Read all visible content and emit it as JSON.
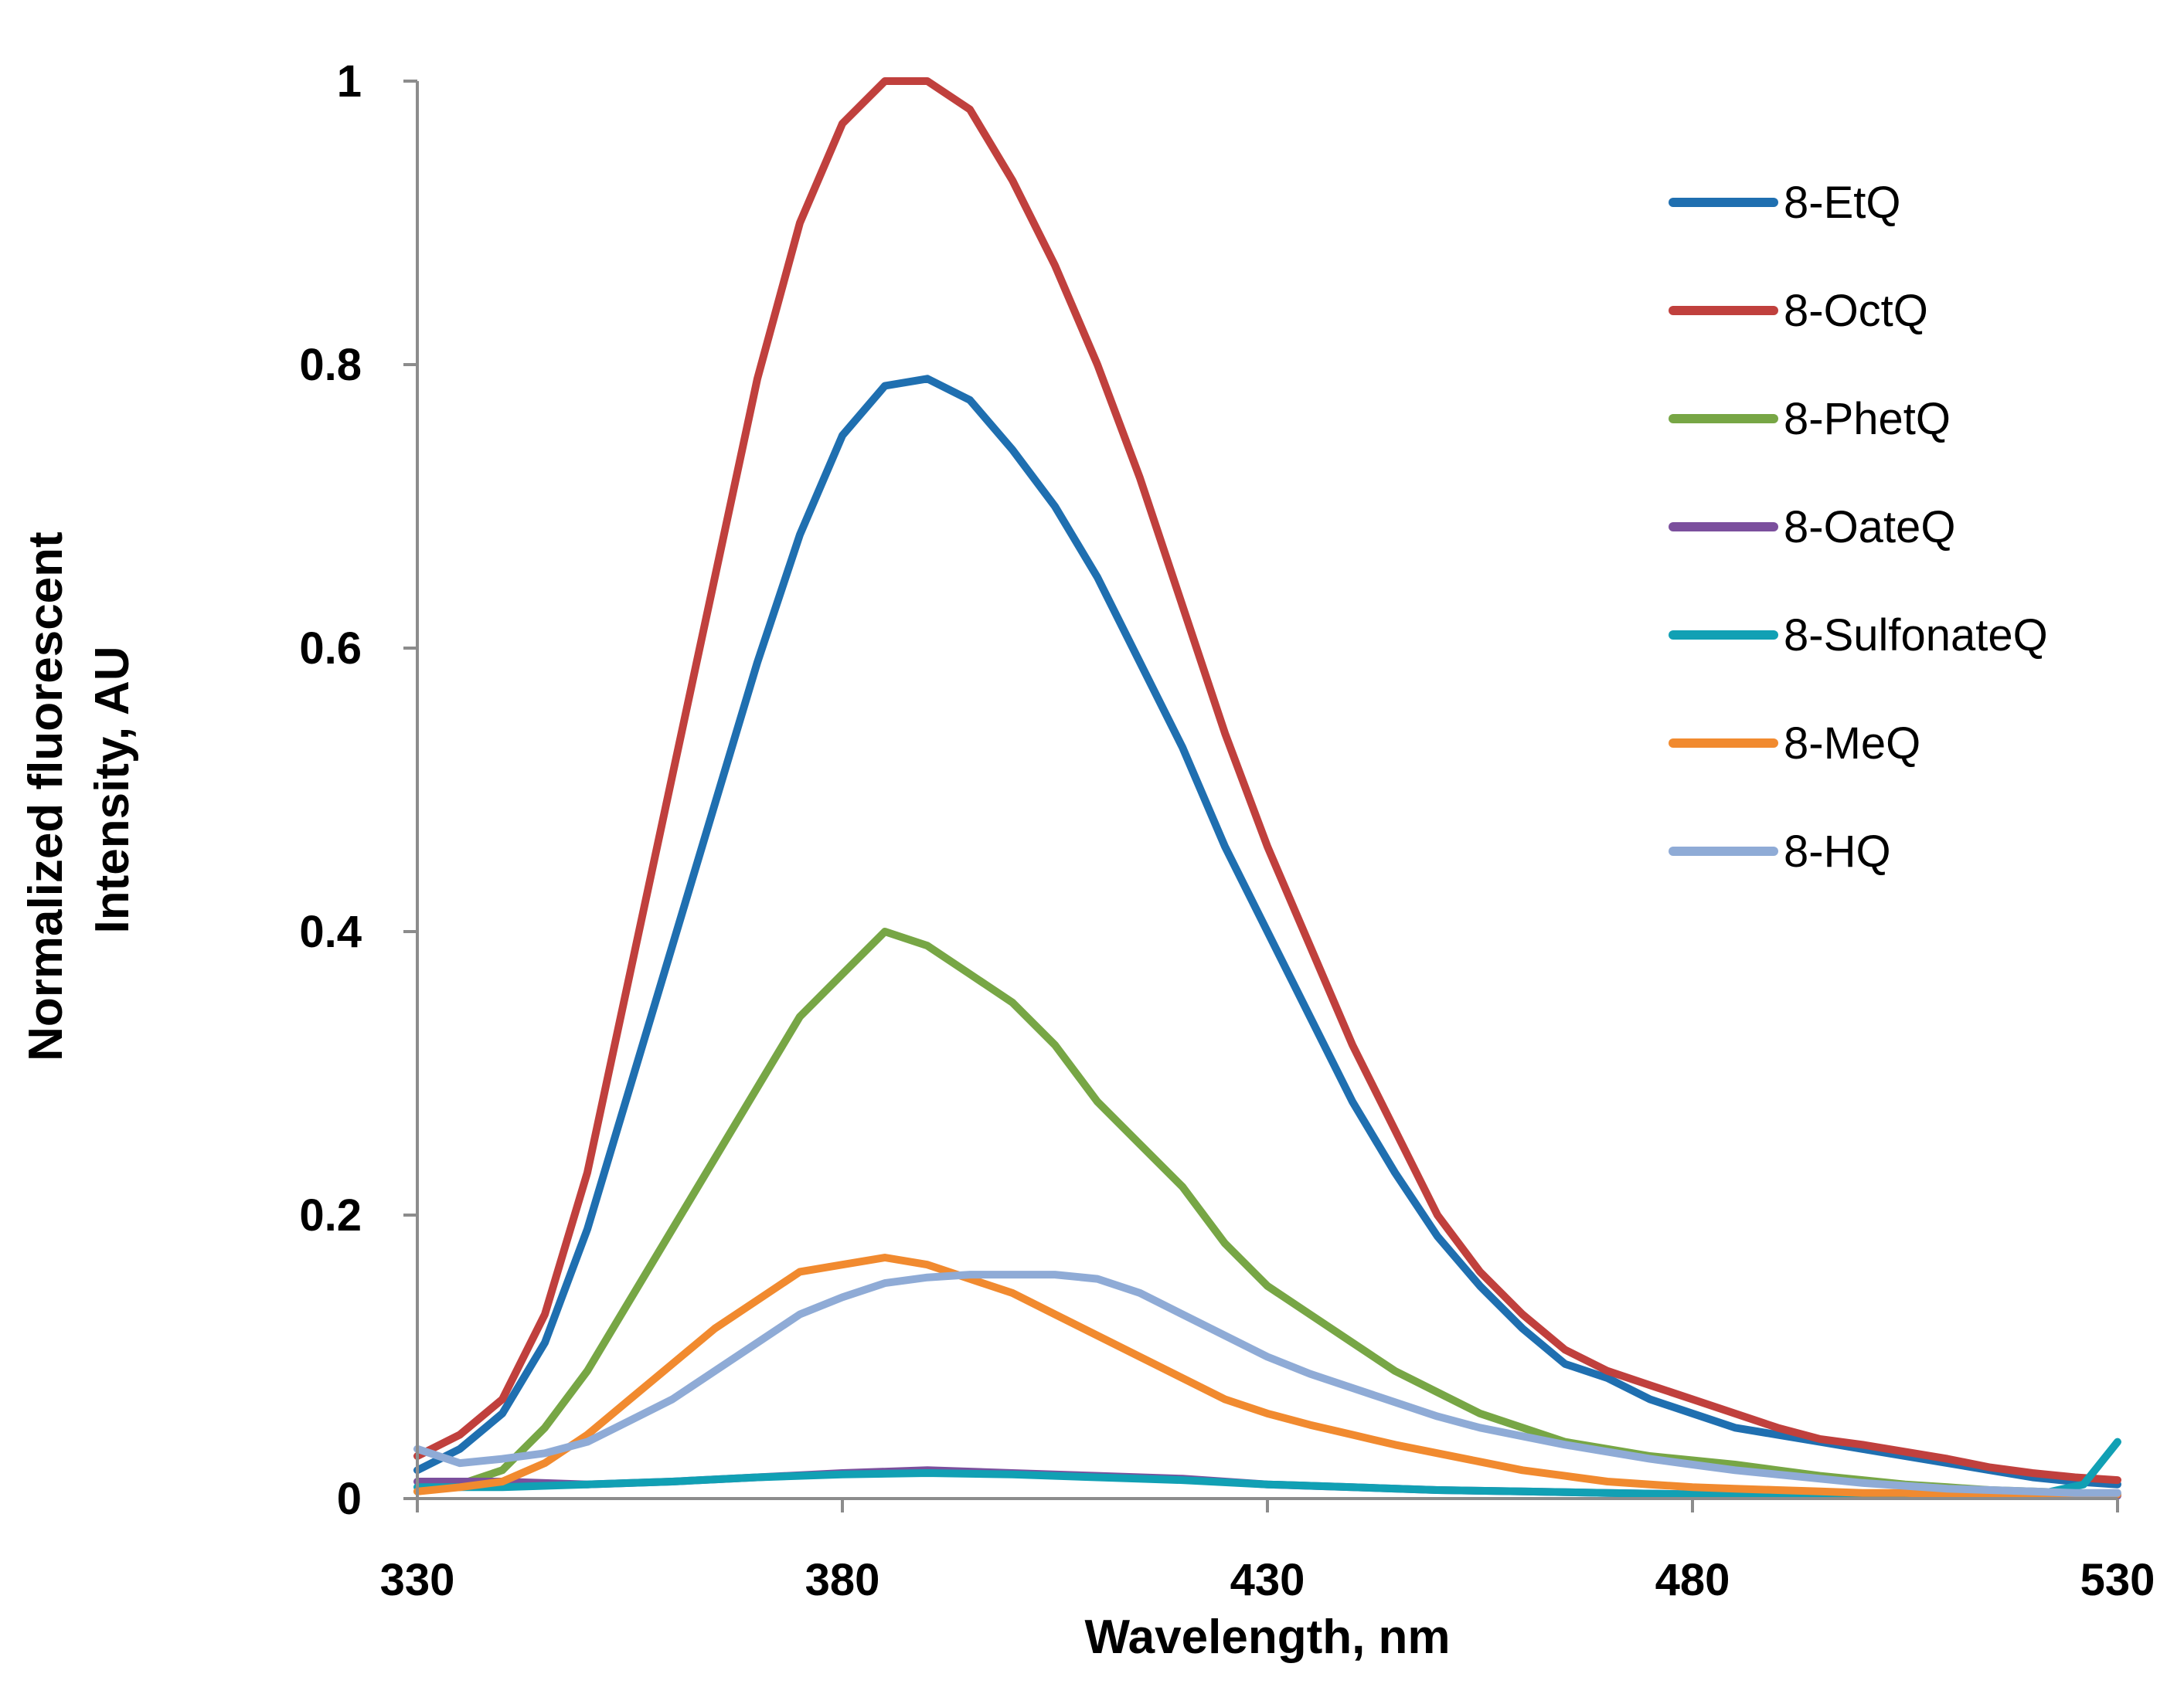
{
  "chart_data": {
    "type": "line",
    "title": "",
    "xlabel": "Wavelength, nm",
    "ylabel_lines": [
      "Normalized fluorescent",
      "Intensity, AU"
    ],
    "xlim": [
      330,
      530
    ],
    "ylim": [
      0,
      1
    ],
    "xticks": [
      330,
      380,
      430,
      480,
      530
    ],
    "xtick_labels": [
      "330",
      "380",
      "430",
      "480",
      "530"
    ],
    "yticks": [
      0,
      0.2,
      0.4,
      0.6,
      0.8,
      1
    ],
    "ytick_labels": [
      "0",
      "0.2",
      "0.4",
      "0.6",
      "0.8",
      "1"
    ],
    "grid": false,
    "legend_position": "top-right",
    "series": [
      {
        "name": "8-EtQ",
        "color": "#1f6fb0",
        "x": [
          330,
          335,
          340,
          345,
          350,
          355,
          360,
          365,
          370,
          375,
          380,
          385,
          390,
          395,
          400,
          405,
          410,
          415,
          420,
          425,
          430,
          435,
          440,
          445,
          450,
          455,
          460,
          465,
          470,
          475,
          480,
          485,
          490,
          495,
          500,
          505,
          510,
          515,
          520,
          525,
          530
        ],
        "values": [
          0.02,
          0.035,
          0.06,
          0.11,
          0.19,
          0.29,
          0.39,
          0.49,
          0.59,
          0.68,
          0.75,
          0.785,
          0.79,
          0.775,
          0.74,
          0.7,
          0.65,
          0.59,
          0.53,
          0.46,
          0.4,
          0.34,
          0.28,
          0.23,
          0.185,
          0.15,
          0.12,
          0.095,
          0.085,
          0.07,
          0.06,
          0.05,
          0.045,
          0.04,
          0.035,
          0.03,
          0.025,
          0.02,
          0.015,
          0.012,
          0.01
        ]
      },
      {
        "name": "8-OctQ",
        "color": "#c0403d",
        "x": [
          330,
          335,
          340,
          345,
          350,
          355,
          360,
          365,
          370,
          375,
          380,
          385,
          390,
          395,
          400,
          405,
          410,
          415,
          420,
          425,
          430,
          435,
          440,
          445,
          450,
          455,
          460,
          465,
          470,
          475,
          480,
          485,
          490,
          495,
          500,
          505,
          510,
          515,
          520,
          525,
          530
        ],
        "values": [
          0.03,
          0.045,
          0.07,
          0.13,
          0.23,
          0.37,
          0.51,
          0.65,
          0.79,
          0.9,
          0.97,
          1.0,
          1.0,
          0.98,
          0.93,
          0.87,
          0.8,
          0.72,
          0.63,
          0.54,
          0.46,
          0.39,
          0.32,
          0.26,
          0.2,
          0.16,
          0.13,
          0.105,
          0.09,
          0.08,
          0.07,
          0.06,
          0.05,
          0.042,
          0.038,
          0.033,
          0.028,
          0.022,
          0.018,
          0.015,
          0.013
        ]
      },
      {
        "name": "8-PhetQ",
        "color": "#77a645",
        "x": [
          330,
          335,
          340,
          345,
          350,
          355,
          360,
          365,
          370,
          375,
          380,
          385,
          390,
          395,
          400,
          405,
          410,
          415,
          420,
          425,
          430,
          435,
          440,
          445,
          450,
          455,
          460,
          465,
          470,
          475,
          480,
          485,
          490,
          495,
          500,
          505,
          510,
          515,
          520,
          525,
          530
        ],
        "values": [
          0.005,
          0.01,
          0.02,
          0.05,
          0.09,
          0.14,
          0.19,
          0.24,
          0.29,
          0.34,
          0.37,
          0.4,
          0.39,
          0.37,
          0.35,
          0.32,
          0.28,
          0.25,
          0.22,
          0.18,
          0.15,
          0.13,
          0.11,
          0.09,
          0.075,
          0.06,
          0.05,
          0.04,
          0.035,
          0.03,
          0.027,
          0.024,
          0.02,
          0.016,
          0.013,
          0.01,
          0.008,
          0.006,
          0.005,
          0.004,
          0.003
        ]
      },
      {
        "name": "8-OateQ",
        "color": "#7b4f9d",
        "x": [
          330,
          340,
          350,
          360,
          370,
          380,
          390,
          400,
          410,
          420,
          430,
          440,
          450,
          460,
          470,
          480,
          490,
          500,
          510,
          520,
          530
        ],
        "values": [
          0.012,
          0.012,
          0.01,
          0.012,
          0.015,
          0.018,
          0.02,
          0.018,
          0.016,
          0.014,
          0.01,
          0.008,
          0.006,
          0.005,
          0.004,
          0.003,
          0.003,
          0.002,
          0.002,
          0.002,
          0.002
        ]
      },
      {
        "name": "8-SulfonateQ",
        "color": "#11a0b4",
        "x": [
          330,
          340,
          350,
          360,
          370,
          380,
          390,
          400,
          410,
          420,
          430,
          440,
          450,
          460,
          470,
          480,
          490,
          500,
          510,
          520,
          526,
          530
        ],
        "values": [
          0.008,
          0.008,
          0.01,
          0.012,
          0.015,
          0.017,
          0.018,
          0.017,
          0.015,
          0.013,
          0.01,
          0.008,
          0.006,
          0.005,
          0.004,
          0.003,
          0.003,
          0.002,
          0.002,
          0.002,
          0.01,
          0.04
        ]
      },
      {
        "name": "8-MeQ",
        "color": "#f18a2f",
        "x": [
          330,
          335,
          340,
          345,
          350,
          355,
          360,
          365,
          370,
          375,
          380,
          385,
          390,
          395,
          400,
          405,
          410,
          415,
          420,
          425,
          430,
          435,
          440,
          445,
          450,
          455,
          460,
          465,
          470,
          475,
          480,
          485,
          490,
          495,
          500,
          505,
          510,
          515,
          520,
          525,
          530
        ],
        "values": [
          0.005,
          0.008,
          0.012,
          0.025,
          0.045,
          0.07,
          0.095,
          0.12,
          0.14,
          0.16,
          0.165,
          0.17,
          0.165,
          0.155,
          0.145,
          0.13,
          0.115,
          0.1,
          0.085,
          0.07,
          0.06,
          0.052,
          0.045,
          0.038,
          0.032,
          0.026,
          0.02,
          0.016,
          0.012,
          0.01,
          0.008,
          0.007,
          0.006,
          0.005,
          0.004,
          0.004,
          0.003,
          0.003,
          0.003,
          0.003,
          0.003
        ]
      },
      {
        "name": "8-HQ",
        "color": "#8fabd6",
        "x": [
          330,
          335,
          340,
          345,
          350,
          355,
          360,
          365,
          370,
          375,
          380,
          385,
          390,
          395,
          400,
          405,
          410,
          415,
          420,
          425,
          430,
          435,
          440,
          445,
          450,
          455,
          460,
          465,
          470,
          475,
          480,
          485,
          490,
          495,
          500,
          505,
          510,
          515,
          520,
          525,
          530
        ],
        "values": [
          0.035,
          0.025,
          0.028,
          0.032,
          0.04,
          0.055,
          0.07,
          0.09,
          0.11,
          0.13,
          0.142,
          0.152,
          0.156,
          0.158,
          0.158,
          0.158,
          0.155,
          0.145,
          0.13,
          0.115,
          0.1,
          0.088,
          0.078,
          0.068,
          0.058,
          0.05,
          0.044,
          0.038,
          0.033,
          0.028,
          0.024,
          0.02,
          0.017,
          0.014,
          0.011,
          0.009,
          0.007,
          0.006,
          0.005,
          0.004,
          0.004
        ]
      }
    ]
  }
}
